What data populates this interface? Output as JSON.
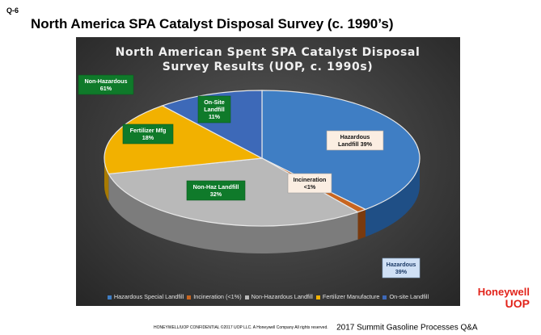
{
  "slide": {
    "id": "Q-6",
    "title": "North America SPA Catalyst Disposal Survey (c. 1990’s)"
  },
  "chart_data": {
    "type": "pie",
    "title_lines": [
      "North American Spent SPA Catalyst Disposal",
      "Survey Results (UOP, c. 1990s)"
    ],
    "slices": [
      {
        "name": "Hazardous Special Landfill",
        "value": 39,
        "color": "#3f7ec4",
        "side": "#1f4f86"
      },
      {
        "name": "Incineration (<1%)",
        "value": 1,
        "color": "#c8651f",
        "side": "#7a3a0e"
      },
      {
        "name": "Non-Hazardous Landfill",
        "value": 32,
        "color": "#b9b9b9",
        "side": "#7c7c7c"
      },
      {
        "name": "Fertilizer Manufacture",
        "value": 18,
        "color": "#f2b100",
        "side": "#a87a00"
      },
      {
        "name": "On-site Landfill",
        "value": 11,
        "color": "#3d69b8",
        "side": "#233f75"
      }
    ],
    "annotations": [
      {
        "lines": [
          "Hazardous",
          "Landfill 39%"
        ],
        "style": "light"
      },
      {
        "lines": [
          "Incineration",
          "<1%"
        ],
        "style": "light"
      },
      {
        "lines": [
          "Non-Haz Landfill",
          "32%"
        ],
        "style": "green"
      },
      {
        "lines": [
          "Fertilizer Mfg",
          "18%"
        ],
        "style": "green"
      },
      {
        "lines": [
          "On-Site",
          "Landfill",
          "11%"
        ],
        "style": "green"
      },
      {
        "lines": [
          "Non-Hazardous",
          "61%"
        ],
        "style": "green"
      },
      {
        "lines": [
          "Hazardous",
          "39%"
        ],
        "style": "blue"
      }
    ],
    "legend_position": "bottom"
  },
  "logo": {
    "line1": "Honeywell",
    "line2": "UOP"
  },
  "footer": {
    "confidential": "HONEYWELL/UOP   CONFIDENTIAL   ©2017 UOP LLC. A Honeywell Company   All rights reserved.",
    "event": "2017 Summit Gasoline Processes Q&A"
  }
}
